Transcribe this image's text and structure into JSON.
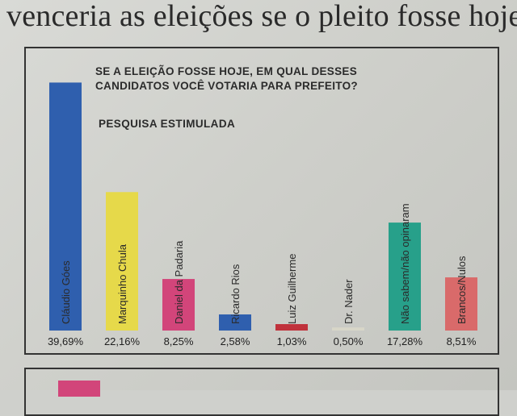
{
  "headline": "venceria as eleições se o pleito fosse hoje",
  "chart_data": {
    "type": "bar",
    "title_lines": [
      "SE A ELEIÇÃO FOSSE HOJE, EM QUAL DESSES",
      "CANDIDATOS VOCÊ VOTARIA PARA PREFEITO?"
    ],
    "subtitle": "PESQUISA ESTIMULADA",
    "categories": [
      "Cláudio Góes",
      "Marquinho Chula",
      "Daniel da Padaria",
      "Ricardo Rios",
      "Luiz Guilherme",
      "Dr. Nader",
      "Não sabem/não opinaram",
      "Brancos/Nulos"
    ],
    "values": [
      39.69,
      22.16,
      8.25,
      2.58,
      1.03,
      0.5,
      17.28,
      8.51
    ],
    "value_labels": [
      "39,69%",
      "22,16%",
      "8,25%",
      "2,58%",
      "1,03%",
      "0,50%",
      "17,28%",
      "8,51%"
    ],
    "colors": [
      "#2f5fae",
      "#e6d94a",
      "#d2457a",
      "#2f5fae",
      "#c0323c",
      "#d8d6c8",
      "#27a08a",
      "#d96a6a"
    ],
    "ylim": [
      0,
      40
    ],
    "grid": false,
    "legend": "none"
  }
}
